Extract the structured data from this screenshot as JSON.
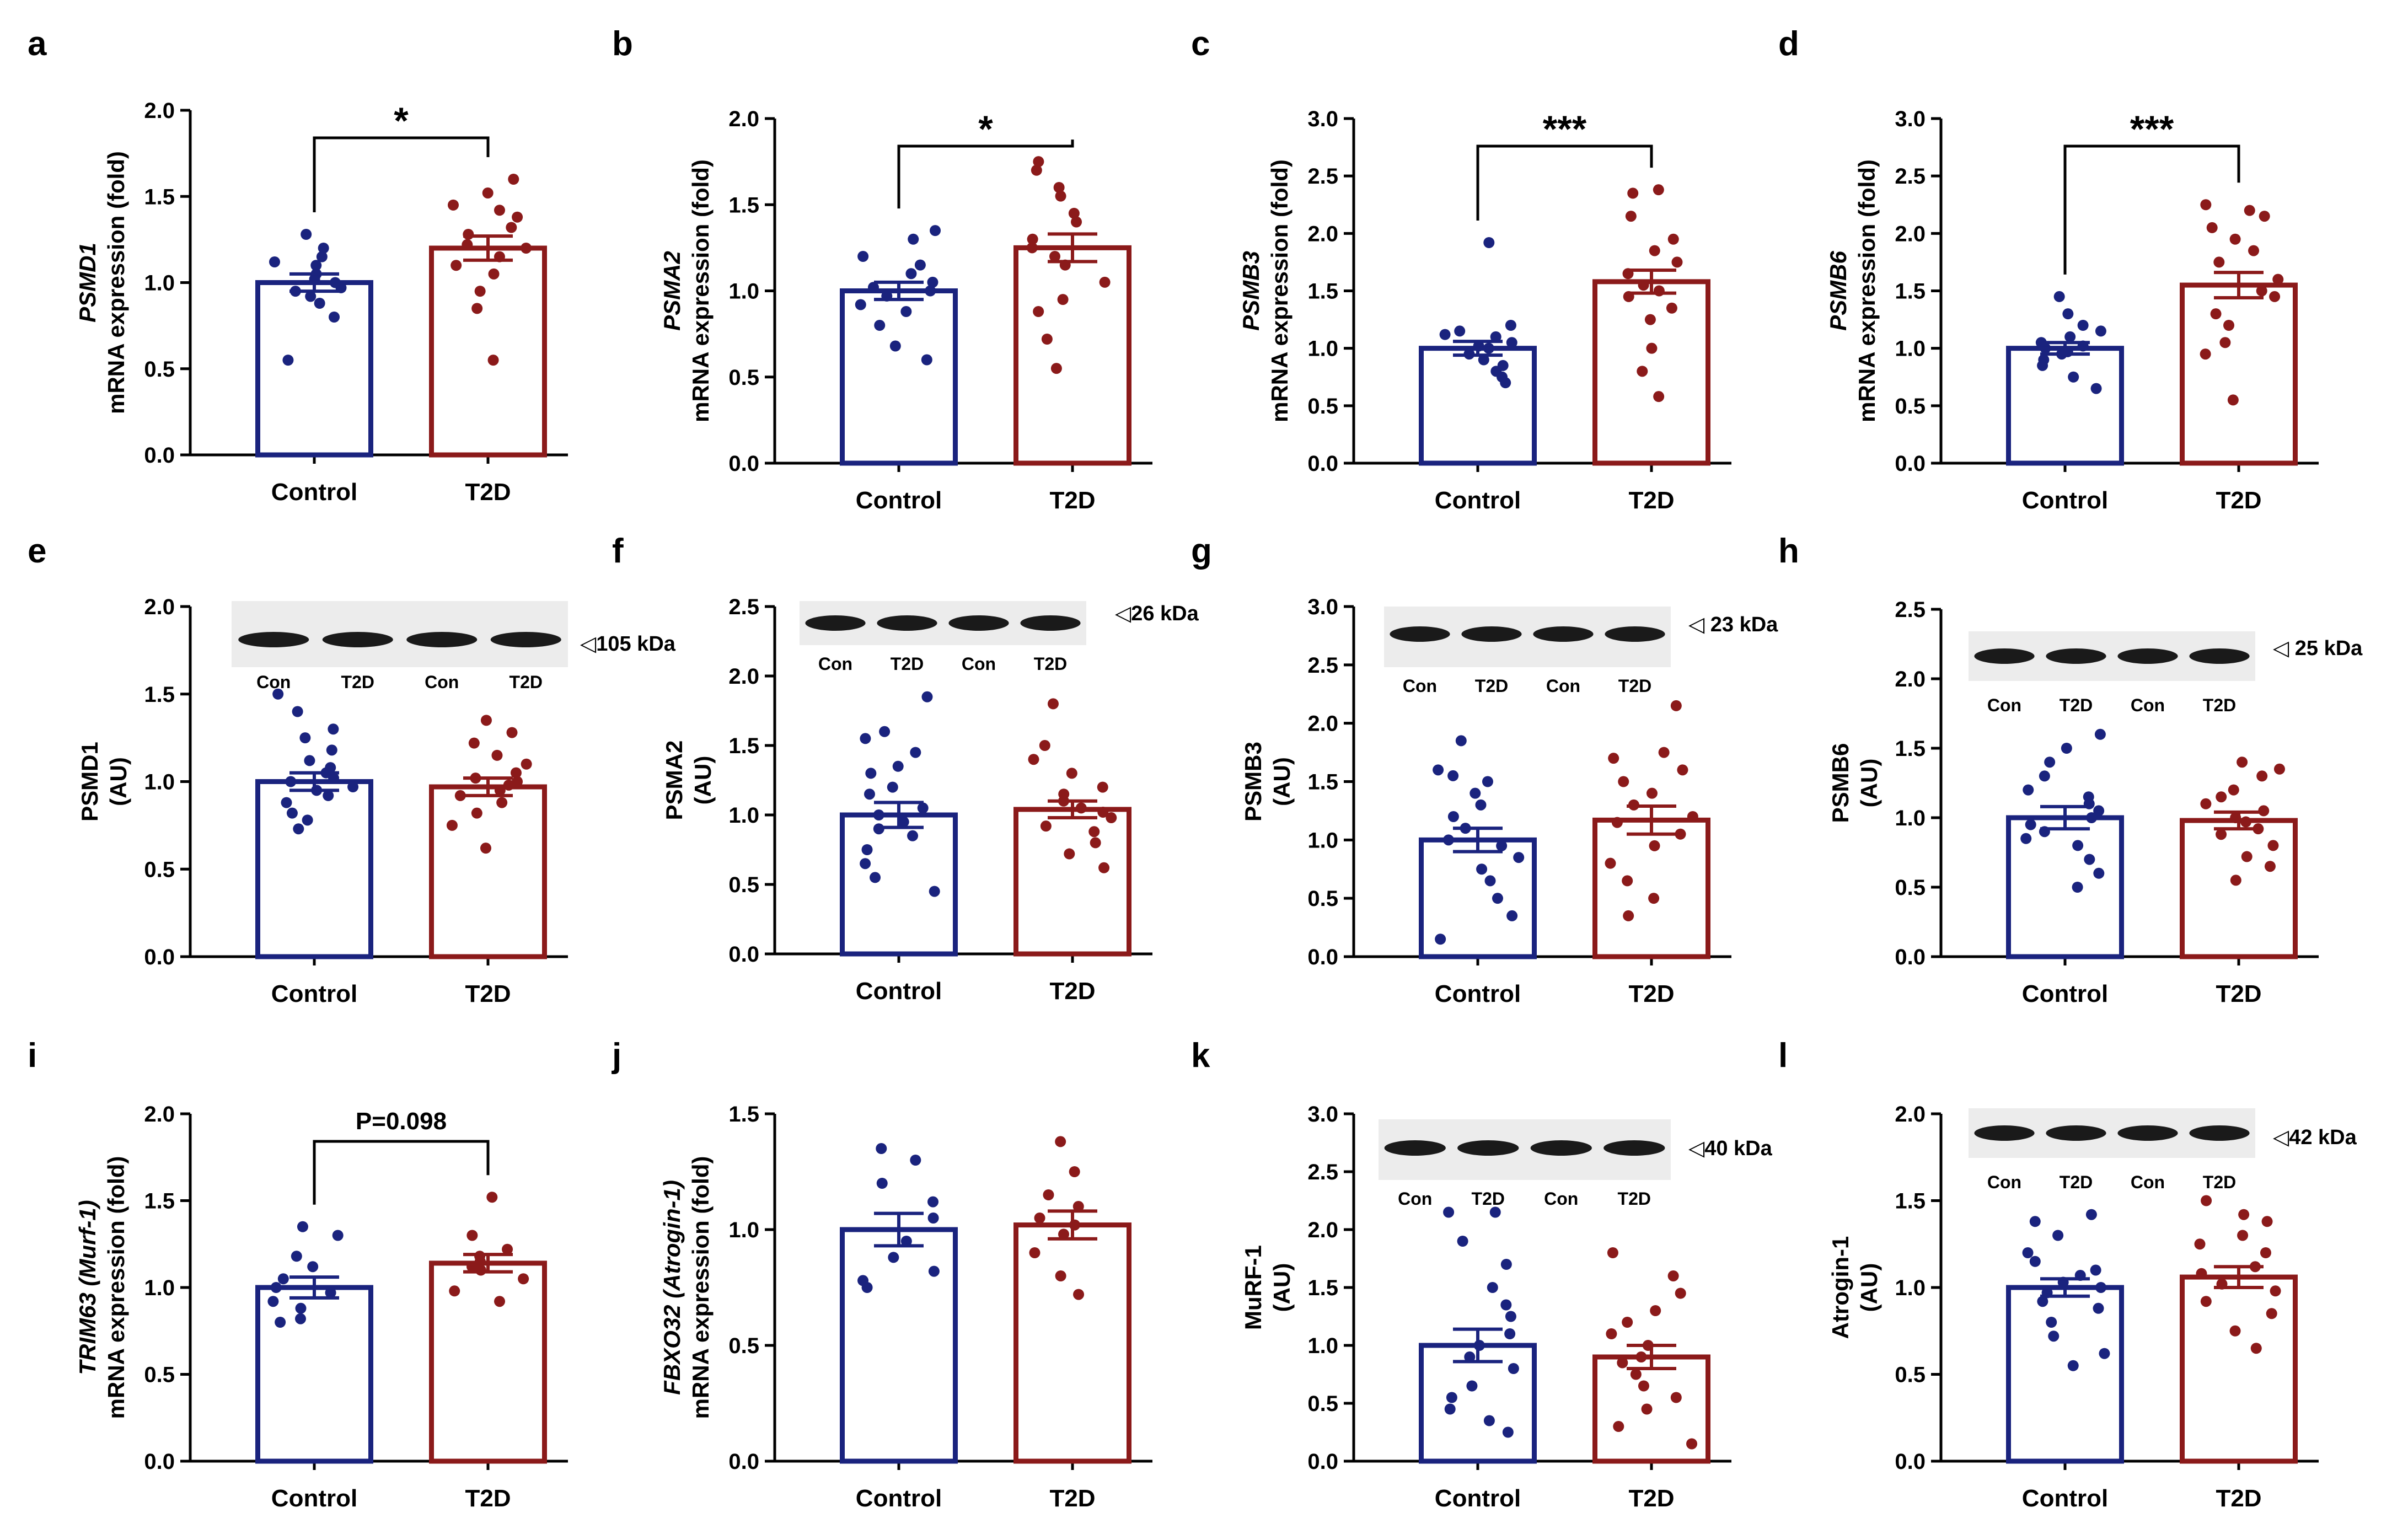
{
  "colors": {
    "control": "#1a237e",
    "t2d": "#8b1a1a",
    "axis": "#000000"
  },
  "chart_data": [
    {
      "panel": "a",
      "type": "bar",
      "ylabel_italic": "PSMD1",
      "ylabel": "mRNA expression (fold)",
      "categories": [
        "Control",
        "T2D"
      ],
      "values": [
        1.0,
        1.2
      ],
      "sem": [
        0.05,
        0.07
      ],
      "ylim": [
        0,
        2.0
      ],
      "yticks": [
        "0.0",
        "0.5",
        "1.0",
        "1.5",
        "2.0"
      ],
      "points": [
        [
          0.55,
          0.8,
          0.88,
          0.92,
          0.95,
          0.97,
          1.0,
          1.02,
          1.05,
          1.1,
          1.12,
          1.15,
          1.2,
          1.28
        ],
        [
          0.55,
          0.85,
          0.95,
          1.05,
          1.1,
          1.15,
          1.2,
          1.22,
          1.28,
          1.32,
          1.38,
          1.42,
          1.45,
          1.52,
          1.6
        ]
      ],
      "significance": "*",
      "blot": null
    },
    {
      "panel": "b",
      "type": "bar",
      "ylabel_italic": "PSMA2",
      "ylabel": "mRNA expression (fold)",
      "categories": [
        "Control",
        "T2D"
      ],
      "values": [
        1.0,
        1.25
      ],
      "sem": [
        0.05,
        0.08
      ],
      "ylim": [
        0,
        2.0
      ],
      "yticks": [
        "0.0",
        "0.5",
        "1.0",
        "1.5",
        "2.0"
      ],
      "points": [
        [
          0.6,
          0.68,
          0.8,
          0.88,
          0.92,
          0.97,
          1.0,
          1.02,
          1.05,
          1.1,
          1.15,
          1.2,
          1.3,
          1.35
        ],
        [
          0.55,
          0.72,
          0.88,
          0.95,
          1.05,
          1.15,
          1.2,
          1.25,
          1.3,
          1.4,
          1.45,
          1.55,
          1.6,
          1.7,
          1.75
        ]
      ],
      "significance": "*",
      "blot": null
    },
    {
      "panel": "c",
      "type": "bar",
      "ylabel_italic": "PSMB3",
      "ylabel": "mRNA expression (fold)",
      "categories": [
        "Control",
        "T2D"
      ],
      "values": [
        1.0,
        1.58
      ],
      "sem": [
        0.06,
        0.1
      ],
      "ylim": [
        0,
        3.0
      ],
      "yticks": [
        "0.0",
        "0.5",
        "1.0",
        "1.5",
        "2.0",
        "2.5",
        "3.0"
      ],
      "points": [
        [
          0.7,
          0.75,
          0.8,
          0.85,
          0.9,
          0.95,
          1.0,
          1.02,
          1.05,
          1.1,
          1.12,
          1.15,
          1.2,
          1.92
        ],
        [
          0.58,
          0.8,
          1.0,
          1.25,
          1.35,
          1.45,
          1.5,
          1.55,
          1.65,
          1.75,
          1.85,
          1.95,
          2.15,
          2.35,
          2.38
        ]
      ],
      "significance": "***",
      "blot": null
    },
    {
      "panel": "d",
      "type": "bar",
      "ylabel_italic": "PSMB6",
      "ylabel": "mRNA expression (fold)",
      "categories": [
        "Control",
        "T2D"
      ],
      "values": [
        1.0,
        1.55
      ],
      "sem": [
        0.05,
        0.11
      ],
      "ylim": [
        0,
        3.0
      ],
      "yticks": [
        "0.0",
        "0.5",
        "1.0",
        "1.5",
        "2.0",
        "2.5",
        "3.0"
      ],
      "points": [
        [
          0.65,
          0.75,
          0.85,
          0.9,
          0.95,
          0.97,
          1.0,
          1.02,
          1.05,
          1.1,
          1.15,
          1.2,
          1.3,
          1.45
        ],
        [
          0.55,
          0.95,
          1.05,
          1.2,
          1.3,
          1.45,
          1.5,
          1.6,
          1.75,
          1.85,
          1.95,
          2.05,
          2.15,
          2.2,
          2.25
        ]
      ],
      "significance": "***",
      "blot": null
    },
    {
      "panel": "e",
      "type": "bar",
      "ylabel_italic": "",
      "ylabel": "PSMD1 (AU)",
      "categories": [
        "Control",
        "T2D"
      ],
      "values": [
        1.0,
        0.97
      ],
      "sem": [
        0.05,
        0.05
      ],
      "ylim": [
        0,
        2.0
      ],
      "yticks": [
        "0.0",
        "0.5",
        "1.0",
        "1.5",
        "2.0"
      ],
      "points": [
        [
          0.73,
          0.78,
          0.82,
          0.88,
          0.92,
          0.95,
          0.97,
          1.0,
          1.02,
          1.05,
          1.08,
          1.12,
          1.18,
          1.25,
          1.3,
          1.4,
          1.5
        ],
        [
          0.62,
          0.75,
          0.82,
          0.88,
          0.92,
          0.95,
          0.98,
          1.0,
          1.02,
          1.05,
          1.1,
          1.15,
          1.22,
          1.28,
          1.35
        ]
      ],
      "significance": "",
      "blot": {
        "lanes": [
          "Con",
          "T2D",
          "Con",
          "T2D"
        ],
        "size": "◁105 kDa"
      }
    },
    {
      "panel": "f",
      "type": "bar",
      "ylabel_italic": "",
      "ylabel": "PSMA2 (AU)",
      "categories": [
        "Control",
        "T2D"
      ],
      "values": [
        1.0,
        1.04
      ],
      "sem": [
        0.09,
        0.06
      ],
      "ylim": [
        0,
        2.5
      ],
      "yticks": [
        "0.0",
        "0.5",
        "1.0",
        "1.5",
        "2.0",
        "2.5"
      ],
      "points": [
        [
          0.45,
          0.55,
          0.65,
          0.75,
          0.85,
          0.9,
          0.95,
          1.0,
          1.05,
          1.15,
          1.2,
          1.3,
          1.35,
          1.45,
          1.55,
          1.6,
          1.85
        ],
        [
          0.62,
          0.72,
          0.8,
          0.88,
          0.92,
          0.98,
          1.02,
          1.05,
          1.1,
          1.15,
          1.2,
          1.3,
          1.4,
          1.5,
          1.8
        ]
      ],
      "significance": "",
      "blot": {
        "lanes": [
          "Con",
          "T2D",
          "Con",
          "T2D"
        ],
        "size": "◁26 kDa"
      }
    },
    {
      "panel": "g",
      "type": "bar",
      "ylabel_italic": "",
      "ylabel": "PSMB3 (AU)",
      "categories": [
        "Control",
        "T2D"
      ],
      "values": [
        1.0,
        1.17
      ],
      "sem": [
        0.1,
        0.12
      ],
      "ylim": [
        0,
        3.0
      ],
      "yticks": [
        "0.0",
        "0.5",
        "1.0",
        "1.5",
        "2.0",
        "2.5",
        "3.0"
      ],
      "points": [
        [
          0.15,
          0.35,
          0.5,
          0.65,
          0.75,
          0.85,
          0.95,
          1.0,
          1.1,
          1.2,
          1.3,
          1.4,
          1.5,
          1.55,
          1.6,
          1.85
        ],
        [
          0.35,
          0.5,
          0.65,
          0.8,
          0.95,
          1.05,
          1.15,
          1.2,
          1.3,
          1.4,
          1.5,
          1.6,
          1.7,
          1.75,
          2.15
        ]
      ],
      "significance": "",
      "blot": {
        "lanes": [
          "Con",
          "T2D",
          "Con",
          "T2D"
        ],
        "size": "◁ 23 kDa"
      }
    },
    {
      "panel": "h",
      "type": "bar",
      "ylabel_italic": "",
      "ylabel": "PSMB6 (AU)",
      "categories": [
        "Control",
        "T2D"
      ],
      "values": [
        1.0,
        0.98
      ],
      "sem": [
        0.08,
        0.06
      ],
      "ylim": [
        0,
        2.5
      ],
      "yticks": [
        "0.0",
        "0.5",
        "1.0",
        "1.5",
        "2.0",
        "2.5"
      ],
      "points": [
        [
          0.5,
          0.6,
          0.7,
          0.8,
          0.85,
          0.9,
          0.95,
          1.0,
          1.05,
          1.1,
          1.15,
          1.2,
          1.3,
          1.4,
          1.5,
          1.6
        ],
        [
          0.55,
          0.65,
          0.72,
          0.8,
          0.88,
          0.92,
          0.97,
          1.0,
          1.05,
          1.1,
          1.15,
          1.2,
          1.3,
          1.35,
          1.4
        ]
      ],
      "significance": "",
      "blot": {
        "lanes": [
          "Con",
          "T2D",
          "Con",
          "T2D"
        ],
        "size": "◁ 25 kDa"
      }
    },
    {
      "panel": "i",
      "type": "bar",
      "ylabel_italic": "TRIM63 (Murf-1)",
      "ylabel": "mRNA expression (fold)",
      "categories": [
        "Control",
        "T2D"
      ],
      "values": [
        1.0,
        1.14
      ],
      "sem": [
        0.06,
        0.05
      ],
      "ylim": [
        0,
        2.0
      ],
      "yticks": [
        "0.0",
        "0.5",
        "1.0",
        "1.5",
        "2.0"
      ],
      "points": [
        [
          0.8,
          0.82,
          0.88,
          0.92,
          0.97,
          1.0,
          1.05,
          1.12,
          1.18,
          1.3,
          1.35
        ],
        [
          0.92,
          0.98,
          1.05,
          1.1,
          1.12,
          1.15,
          1.18,
          1.22,
          1.3,
          1.52
        ]
      ],
      "significance": "P=0.098",
      "blot": null
    },
    {
      "panel": "j",
      "type": "bar",
      "ylabel_italic": "FBXO32 (Atrogin-1)",
      "ylabel": "mRNA expression (fold)",
      "categories": [
        "Control",
        "T2D"
      ],
      "values": [
        1.0,
        1.02
      ],
      "sem": [
        0.07,
        0.06
      ],
      "ylim": [
        0,
        1.5
      ],
      "yticks": [
        "0.0",
        "0.5",
        "1.0",
        "1.5"
      ],
      "points": [
        [
          0.75,
          0.78,
          0.82,
          0.88,
          0.95,
          1.05,
          1.12,
          1.2,
          1.3,
          1.35
        ],
        [
          0.72,
          0.8,
          0.9,
          0.98,
          1.02,
          1.05,
          1.1,
          1.15,
          1.25,
          1.38
        ]
      ],
      "significance": "",
      "blot": null
    },
    {
      "panel": "k",
      "type": "bar",
      "ylabel_italic": "",
      "ylabel": "MuRF-1 (AU)",
      "categories": [
        "Control",
        "T2D"
      ],
      "values": [
        1.0,
        0.9
      ],
      "sem": [
        0.14,
        0.1
      ],
      "ylim": [
        0,
        3.0
      ],
      "yticks": [
        "0.0",
        "0.5",
        "1.0",
        "1.5",
        "2.0",
        "2.5",
        "3.0"
      ],
      "points": [
        [
          0.25,
          0.35,
          0.45,
          0.55,
          0.65,
          0.8,
          0.9,
          1.0,
          1.1,
          1.25,
          1.35,
          1.5,
          1.7,
          1.9,
          2.15,
          2.15
        ],
        [
          0.15,
          0.3,
          0.45,
          0.55,
          0.65,
          0.75,
          0.85,
          0.9,
          1.0,
          1.1,
          1.2,
          1.3,
          1.45,
          1.6,
          1.8
        ]
      ],
      "significance": "",
      "blot": {
        "lanes": [
          "Con",
          "T2D",
          "Con",
          "T2D"
        ],
        "size": "◁40 kDa"
      }
    },
    {
      "panel": "l",
      "type": "bar",
      "ylabel_italic": "",
      "ylabel": "Atrogin-1 (AU)",
      "categories": [
        "Control",
        "T2D"
      ],
      "values": [
        1.0,
        1.06
      ],
      "sem": [
        0.05,
        0.06
      ],
      "ylim": [
        0,
        2.0
      ],
      "yticks": [
        "0.0",
        "0.5",
        "1.0",
        "1.5",
        "2.0"
      ],
      "points": [
        [
          0.55,
          0.62,
          0.72,
          0.8,
          0.88,
          0.92,
          0.97,
          1.0,
          1.03,
          1.07,
          1.1,
          1.15,
          1.2,
          1.3,
          1.38,
          1.42
        ],
        [
          0.65,
          0.75,
          0.85,
          0.92,
          0.98,
          1.02,
          1.08,
          1.12,
          1.2,
          1.25,
          1.3,
          1.38,
          1.42,
          1.5
        ]
      ],
      "significance": "",
      "blot": {
        "lanes": [
          "Con",
          "T2D",
          "Con",
          "T2D"
        ],
        "size": "◁42 kDa"
      }
    }
  ]
}
